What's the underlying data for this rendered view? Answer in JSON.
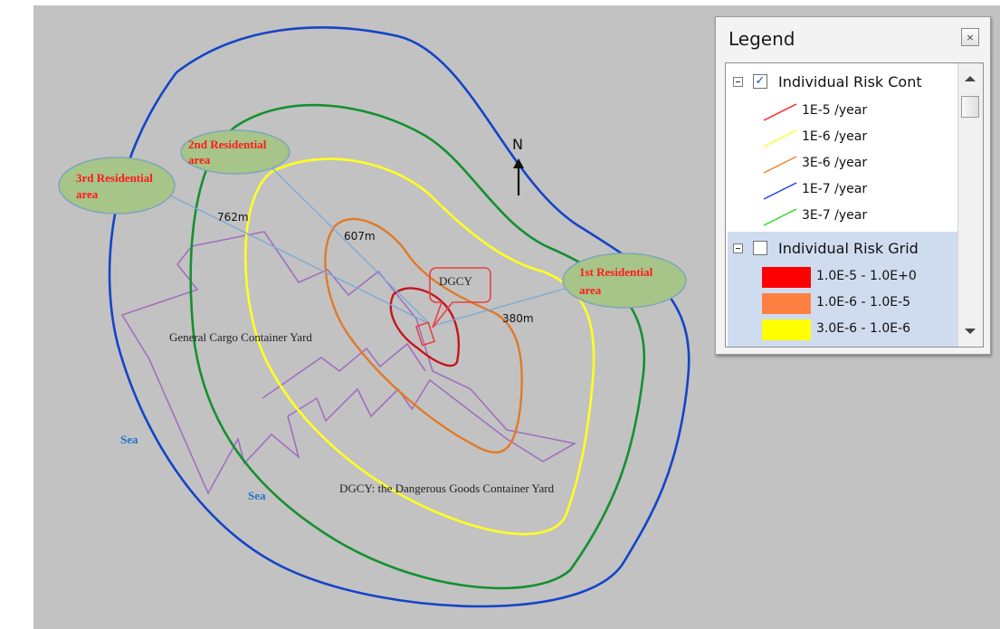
{
  "map": {
    "north_label": "N",
    "residential_areas": [
      {
        "label": "1st Residential",
        "label_line2": "area"
      },
      {
        "label": "2nd Residential",
        "label_line2": "area"
      },
      {
        "label": "3rd Residential",
        "label_line2": "area"
      }
    ],
    "distances": [
      "762m",
      "607m",
      "380m"
    ],
    "dgcy_label": "DGCY",
    "general_cargo_label": "General Cargo Container Yard",
    "sea_labels": [
      "Sea",
      "Sea"
    ],
    "footnote": "DGCY: the Dangerous Goods Container Yard",
    "colors": {
      "background": "#c2c2c2",
      "residential_fill": "#a7c489",
      "label_red": "#ff1a1a",
      "sea_blue": "#1f74c9",
      "yard_purple": "#a070c0",
      "contour_1e5": "#c8141c",
      "contour_3e6": "#e07a28",
      "contour_1e6": "#ffff22",
      "contour_3e7": "#149030",
      "contour_1e7": "#1444c8"
    }
  },
  "legend": {
    "title": "Legend",
    "close_icon": "close-icon",
    "contour_group": {
      "label": "Individual Risk Cont",
      "checked": true,
      "items": [
        {
          "label": "1E-5 /year",
          "color": "#ff1a1a"
        },
        {
          "label": "1E-6 /year",
          "color": "#ffff22"
        },
        {
          "label": "3E-6 /year",
          "color": "#f08030"
        },
        {
          "label": "1E-7 /year",
          "color": "#1a3cff"
        },
        {
          "label": "3E-7 /year",
          "color": "#22dd22"
        }
      ]
    },
    "grid_group": {
      "label": "Individual Risk Grid",
      "checked": false,
      "items": [
        {
          "label": "1.0E-5 - 1.0E+0",
          "color": "#ff0000"
        },
        {
          "label": "1.0E-6 - 1.0E-5",
          "color": "#ff8040"
        },
        {
          "label": "3.0E-6 - 1.0E-6",
          "color": "#ffff00"
        }
      ]
    }
  }
}
